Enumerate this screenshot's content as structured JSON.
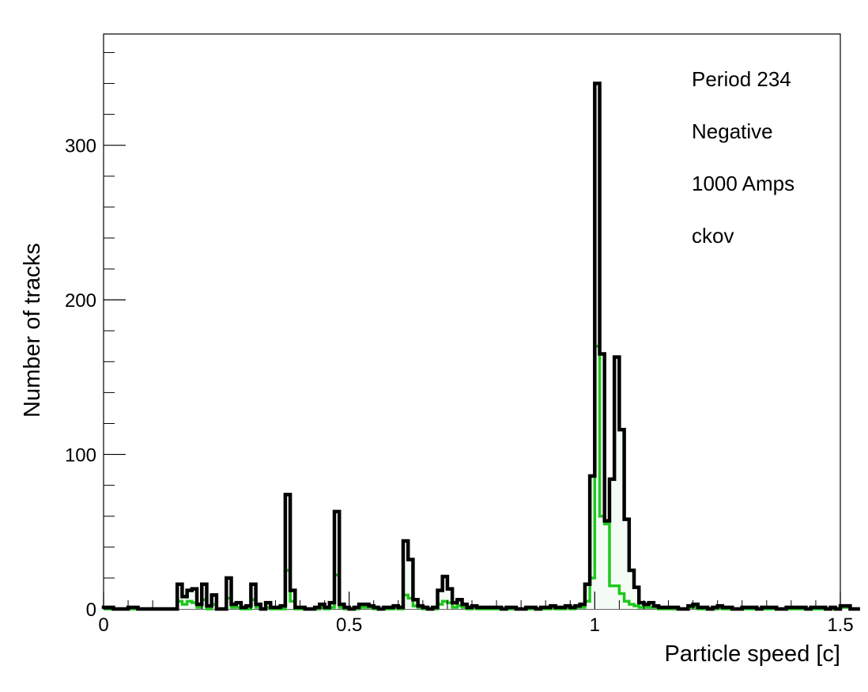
{
  "chart_data": {
    "type": "histogram",
    "xlabel": "Particle speed [c]",
    "ylabel": "Number of tracks",
    "xlim": [
      0,
      1.5
    ],
    "ylim": [
      0,
      372
    ],
    "x_ticks": [
      0,
      0.5,
      1,
      1.5
    ],
    "x_tick_labels": [
      "0",
      "0.5",
      "1",
      "1.5"
    ],
    "y_ticks": [
      0,
      100,
      200,
      300
    ],
    "y_tick_labels": [
      "0",
      "100",
      "200",
      "300"
    ],
    "grid": false,
    "bin_width": 0.01,
    "annotations": [
      "Period 234",
      "Negative",
      "1000 Amps",
      "ckov"
    ],
    "series": [
      {
        "color": "#000000",
        "fill": "#f4fbf4",
        "values": [
          1,
          1,
          0,
          0,
          0,
          1,
          1,
          0,
          0,
          0,
          0,
          0,
          0,
          0,
          0,
          16,
          8,
          12,
          13,
          3,
          16,
          2,
          9,
          0,
          0,
          20,
          3,
          4,
          1,
          2,
          16,
          3,
          0,
          4,
          1,
          1,
          2,
          74,
          12,
          1,
          1,
          0,
          0,
          1,
          3,
          1,
          4,
          63,
          3,
          1,
          0,
          1,
          3,
          3,
          2,
          1,
          0,
          1,
          1,
          2,
          1,
          44,
          32,
          6,
          2,
          1,
          0,
          1,
          12,
          21,
          13,
          4,
          6,
          3,
          1,
          2,
          1,
          1,
          1,
          1,
          1,
          0,
          1,
          1,
          0,
          0,
          1,
          1,
          0,
          1,
          1,
          2,
          1,
          1,
          2,
          1,
          2,
          3,
          16,
          86,
          340,
          165,
          57,
          84,
          163,
          116,
          58,
          25,
          14,
          4,
          3,
          4,
          2,
          1,
          1,
          1,
          1,
          0,
          0,
          2,
          3,
          1,
          1,
          0,
          1,
          2,
          1,
          1,
          0,
          0,
          1,
          1,
          1,
          0,
          1,
          1,
          1,
          0,
          0,
          1,
          1,
          1,
          1,
          0,
          1,
          1,
          1,
          0,
          1,
          0,
          2,
          2,
          0,
          0
        ],
        "values_note": ""
      },
      {
        "color": "#1ec81e",
        "values": [
          0,
          0,
          0,
          0,
          0,
          0,
          0,
          0,
          0,
          0,
          0,
          0,
          0,
          0,
          0,
          5,
          3,
          5,
          4,
          1,
          6,
          0,
          3,
          0,
          0,
          7,
          1,
          1,
          0,
          0,
          6,
          1,
          0,
          1,
          0,
          0,
          0,
          25,
          5,
          0,
          0,
          0,
          0,
          0,
          1,
          0,
          1,
          22,
          1,
          0,
          0,
          0,
          1,
          1,
          1,
          0,
          0,
          0,
          0,
          1,
          0,
          9,
          7,
          2,
          1,
          0,
          0,
          0,
          3,
          5,
          4,
          1,
          2,
          1,
          0,
          1,
          0,
          0,
          0,
          0,
          0,
          0,
          0,
          0,
          0,
          0,
          0,
          0,
          0,
          0,
          0,
          1,
          0,
          0,
          1,
          0,
          1,
          1,
          5,
          20,
          170,
          60,
          55,
          15,
          15,
          10,
          5,
          3,
          2,
          1,
          1,
          1,
          1,
          0,
          0,
          0,
          0,
          0,
          0,
          1,
          1,
          0,
          0,
          0,
          0,
          1,
          0,
          0,
          0,
          0,
          0,
          0,
          0,
          0,
          0,
          0,
          0,
          0,
          0,
          0,
          0,
          0,
          0,
          0,
          0,
          0,
          0,
          0,
          0,
          0,
          1,
          1,
          0,
          0
        ]
      }
    ]
  }
}
